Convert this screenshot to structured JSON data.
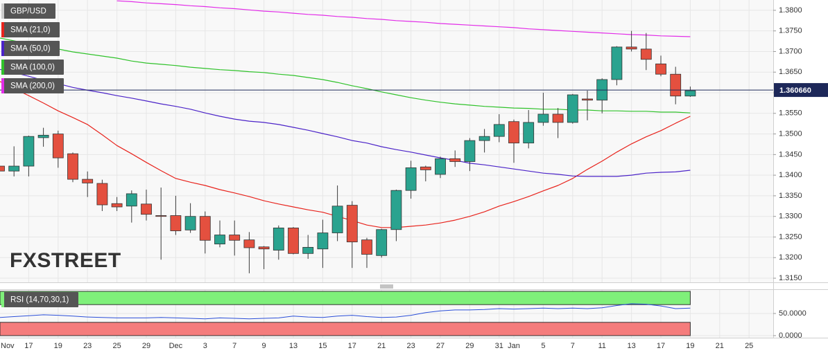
{
  "chart_data": {
    "type": "candlestick",
    "symbol": "GBP/USD",
    "categories": [
      "Nov",
      null,
      "17",
      null,
      "19",
      null,
      "23",
      null,
      "25",
      null,
      "29",
      null,
      "Dec",
      null,
      "3",
      null,
      "7",
      null,
      "9",
      null,
      "13",
      null,
      "15",
      null,
      "17",
      null,
      "21",
      null,
      "23",
      null,
      "27",
      null,
      "29",
      null,
      "31",
      "Jan",
      null,
      "5",
      null,
      "7",
      null,
      "11",
      null,
      "13",
      null,
      "17",
      null,
      "19",
      null,
      "21",
      null,
      "25"
    ],
    "open": [
      1.3422,
      1.341,
      1.3422,
      1.3491,
      1.35,
      1.3452,
      1.339,
      1.338,
      1.3331,
      1.3325,
      1.333,
      1.3302,
      1.3302,
      1.3267,
      1.33,
      1.3233,
      1.3255,
      1.3243,
      1.3226,
      1.3218,
      1.3272,
      1.321,
      1.3221,
      1.326,
      1.3327,
      1.3243,
      1.3205,
      1.3268,
      1.3363,
      1.342,
      1.3402,
      1.344,
      1.3433,
      1.3484,
      1.3494,
      1.353,
      1.3478,
      1.3528,
      1.3548,
      1.3528,
      1.3585,
      1.3582,
      1.3632,
      1.3711,
      1.3706,
      1.367,
      1.3645,
      1.3592,
      null,
      null,
      null,
      null
    ],
    "high": [
      1.344,
      1.347,
      1.3496,
      1.3515,
      1.3508,
      1.3455,
      1.3409,
      1.3389,
      1.3347,
      1.3363,
      1.3365,
      1.337,
      1.335,
      1.3332,
      1.3312,
      1.329,
      1.329,
      1.3262,
      1.3228,
      1.3278,
      1.3274,
      1.3255,
      1.3292,
      1.3375,
      1.3337,
      1.3248,
      1.327,
      1.3365,
      1.3435,
      1.3423,
      1.3445,
      1.346,
      1.349,
      1.3512,
      1.3548,
      1.3535,
      1.3558,
      1.36,
      1.3563,
      1.3597,
      1.3605,
      1.3635,
      1.3713,
      1.375,
      1.3745,
      1.369,
      1.3663,
      1.3615,
      null,
      null,
      null,
      null
    ],
    "low": [
      1.3405,
      1.3397,
      1.3397,
      1.3469,
      1.3418,
      1.3383,
      1.3347,
      1.3313,
      1.3313,
      1.3285,
      1.329,
      1.3195,
      1.3255,
      1.326,
      1.321,
      1.3225,
      1.3205,
      1.3162,
      1.3172,
      1.3195,
      1.3208,
      1.3197,
      1.3175,
      1.324,
      1.3175,
      1.3175,
      1.32,
      1.324,
      1.3343,
      1.3385,
      1.3393,
      1.342,
      1.341,
      1.3455,
      1.348,
      1.343,
      1.3465,
      1.352,
      1.349,
      1.3525,
      1.3533,
      1.355,
      1.3618,
      1.37,
      1.3655,
      1.364,
      1.3572,
      1.359,
      null,
      null,
      null,
      null
    ],
    "close": [
      1.341,
      1.3422,
      1.3494,
      1.3497,
      1.3442,
      1.339,
      1.3381,
      1.3328,
      1.3323,
      1.3355,
      1.3305,
      1.33,
      1.3265,
      1.33,
      1.3242,
      1.3255,
      1.3242,
      1.3224,
      1.3221,
      1.3272,
      1.321,
      1.3225,
      1.326,
      1.3325,
      1.3238,
      1.3208,
      1.3268,
      1.3363,
      1.3418,
      1.3413,
      1.344,
      1.3433,
      1.3484,
      1.3494,
      1.3523,
      1.3478,
      1.3528,
      1.3548,
      1.3528,
      1.3595,
      1.3582,
      1.3632,
      1.3711,
      1.3706,
      1.3681,
      1.3645,
      1.3592,
      1.3605,
      null,
      null,
      null,
      null
    ],
    "up_color": "#2aa38f",
    "down_color": "#e4503f",
    "series": [
      {
        "name": "SMA (21,0)",
        "color": "#e8231c",
        "values": [
          1.3628,
          1.361,
          1.3593,
          1.3575,
          1.3556,
          1.354,
          1.3523,
          1.3498,
          1.3472,
          1.3452,
          1.3431,
          1.3411,
          1.3392,
          1.3383,
          1.3375,
          1.3365,
          1.3357,
          1.3348,
          1.3338,
          1.333,
          1.3323,
          1.3316,
          1.331,
          1.33,
          1.329,
          1.3279,
          1.3273,
          1.3273,
          1.3276,
          1.3279,
          1.3284,
          1.3291,
          1.33,
          1.3311,
          1.3325,
          1.3336,
          1.3348,
          1.3362,
          1.3375,
          1.3392,
          1.3414,
          1.3434,
          1.3456,
          1.3476,
          1.3493,
          1.3508,
          1.3526,
          1.3543,
          null,
          null,
          null,
          null
        ]
      },
      {
        "name": "SMA (50,0)",
        "color": "#4b23c8",
        "values": [
          1.3657,
          1.3649,
          1.364,
          1.363,
          1.3622,
          1.3613,
          1.3606,
          1.36,
          1.3593,
          1.3587,
          1.358,
          1.3573,
          1.3567,
          1.356,
          1.3551,
          1.3543,
          1.3536,
          1.3531,
          1.3528,
          1.3523,
          1.3516,
          1.3509,
          1.3501,
          1.3493,
          1.3484,
          1.3478,
          1.3469,
          1.3462,
          1.3456,
          1.3449,
          1.3442,
          1.3436,
          1.3429,
          1.3425,
          1.342,
          1.3415,
          1.341,
          1.3405,
          1.3402,
          1.3398,
          1.3397,
          1.3397,
          1.3397,
          1.34,
          1.3405,
          1.3407,
          1.3408,
          1.3412,
          null,
          null,
          null,
          null
        ]
      },
      {
        "name": "SMA (100,0)",
        "color": "#2fc22a",
        "values": [
          1.3733,
          1.3726,
          1.3719,
          1.3713,
          1.3706,
          1.3699,
          1.3694,
          1.3689,
          1.3684,
          1.3677,
          1.3672,
          1.3669,
          1.3666,
          1.3662,
          1.3659,
          1.3656,
          1.3654,
          1.3651,
          1.3649,
          1.3645,
          1.3642,
          1.3637,
          1.3632,
          1.3625,
          1.3617,
          1.361,
          1.3602,
          1.3595,
          1.3588,
          1.3582,
          1.3577,
          1.3573,
          1.357,
          1.3567,
          1.3565,
          1.3563,
          1.3562,
          1.356,
          1.356,
          1.3558,
          1.3558,
          1.3556,
          1.3556,
          1.3555,
          1.3555,
          1.3553,
          1.3553,
          1.3551,
          null,
          null,
          null,
          null
        ]
      },
      {
        "name": "SMA (200,0)",
        "color": "#e22ce8",
        "values": [
          null,
          null,
          null,
          null,
          null,
          null,
          null,
          null,
          1.3823,
          1.3821,
          1.3818,
          1.3816,
          1.3814,
          1.3811,
          1.3809,
          1.3806,
          1.3804,
          1.3801,
          1.3798,
          1.3796,
          1.3793,
          1.379,
          1.3788,
          1.3785,
          1.3783,
          1.378,
          1.3778,
          1.3775,
          1.3773,
          1.3771,
          1.3768,
          1.3766,
          1.3764,
          1.3762,
          1.376,
          1.3758,
          1.3755,
          1.3753,
          1.3751,
          1.3749,
          1.3747,
          1.3745,
          1.3743,
          1.3741,
          1.374,
          1.3738,
          1.3737,
          1.3736,
          null,
          null,
          null,
          null
        ]
      }
    ],
    "ylim": [
      1.314,
      1.3825
    ],
    "yticks": [
      {
        "value": 1.315,
        "label": "1.3150"
      },
      {
        "value": 1.32,
        "label": "1.3200"
      },
      {
        "value": 1.325,
        "label": "1.3250"
      },
      {
        "value": 1.33,
        "label": "1.3300"
      },
      {
        "value": 1.335,
        "label": "1.3350"
      },
      {
        "value": 1.34,
        "label": "1.3400"
      },
      {
        "value": 1.345,
        "label": "1.3450"
      },
      {
        "value": 1.35,
        "label": "1.3500"
      },
      {
        "value": 1.355,
        "label": "1.3550"
      },
      {
        "value": 1.36,
        "label": "1.3600"
      },
      {
        "value": 1.365,
        "label": "1.3650"
      },
      {
        "value": 1.37,
        "label": "1.3700"
      },
      {
        "value": 1.375,
        "label": "1.3750"
      },
      {
        "value": 1.38,
        "label": "1.3800"
      }
    ],
    "current": {
      "value": 1.36066,
      "label": "1.360660"
    },
    "grid": true,
    "watermark": "FXSTREET",
    "rsi": {
      "type": "line",
      "name": "RSI (14,70,30,1)",
      "color": "#2a4ed8",
      "values": [
        41,
        43,
        45,
        47,
        46,
        44,
        42,
        41,
        40,
        40,
        40,
        41,
        40,
        39,
        38,
        40,
        39,
        38,
        39,
        40,
        44,
        42,
        41,
        44,
        46,
        43,
        41,
        42,
        46,
        52,
        56,
        58,
        58,
        59,
        61,
        60,
        61,
        62,
        61,
        62,
        61,
        63,
        68,
        72,
        71,
        67,
        61,
        62,
        null,
        null,
        null,
        null
      ],
      "ylim": [
        -4.7,
        104.7
      ],
      "yticks": [
        {
          "value": 0,
          "label": "0.0000"
        },
        {
          "value": 50,
          "label": "50.0000"
        }
      ],
      "bands": [
        {
          "range": [
            70,
            100
          ],
          "color": "#7ff07a"
        },
        {
          "range": [
            0,
            30
          ],
          "color": "#f57c7c"
        }
      ]
    }
  }
}
